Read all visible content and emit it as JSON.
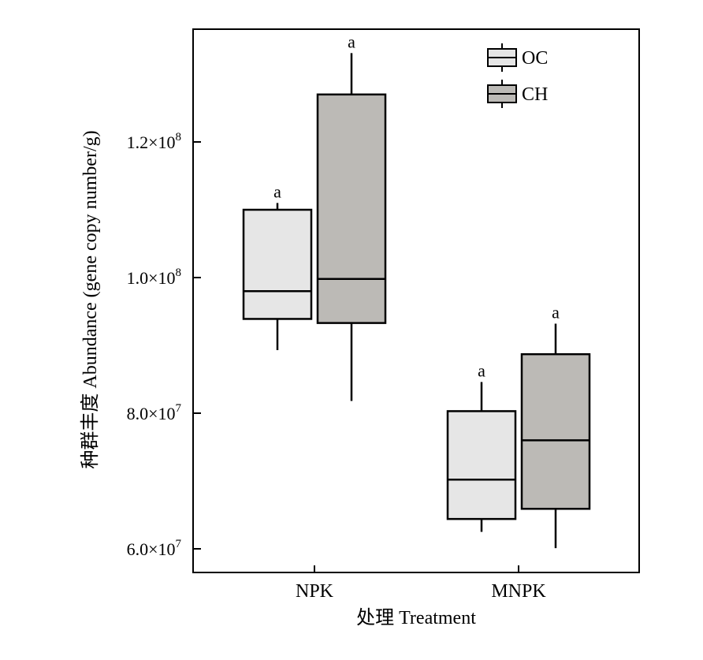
{
  "chart_data": {
    "type": "box",
    "xlabel": "处理 Treatment",
    "ylabel": "种群丰度 Abundance (gene copy number/g)",
    "ylim": [
      60000000,
      138000000
    ],
    "y_ticks": [
      {
        "value": 60000000,
        "mant": "6.0×10",
        "exp": "7"
      },
      {
        "value": 80000000,
        "mant": "8.0×10",
        "exp": "7"
      },
      {
        "value": 100000000,
        "mant": "1.0×10",
        "exp": "8"
      },
      {
        "value": 120000000,
        "mant": "1.2×10",
        "exp": "8"
      }
    ],
    "categories": [
      "NPK",
      "MNPK"
    ],
    "legend_position": "top-right",
    "series": [
      {
        "name": "OC",
        "color": "#e6e6e6",
        "boxes": [
          {
            "min": 89300000,
            "q1": 93900000,
            "median": 98000000,
            "q3": 110000000,
            "max": 111000000,
            "label": "a"
          },
          {
            "min": 62500000,
            "q1": 64400000,
            "median": 70200000,
            "q3": 80300000,
            "max": 84600000,
            "label": "a"
          }
        ]
      },
      {
        "name": "CH",
        "color": "#bcbab6",
        "boxes": [
          {
            "min": 81800000,
            "q1": 93300000,
            "median": 99800000,
            "q3": 127000000,
            "max": 133100000,
            "label": "a"
          },
          {
            "min": 60100000,
            "q1": 65900000,
            "median": 76000000,
            "q3": 88700000,
            "max": 93200000,
            "label": "a"
          }
        ]
      }
    ]
  }
}
